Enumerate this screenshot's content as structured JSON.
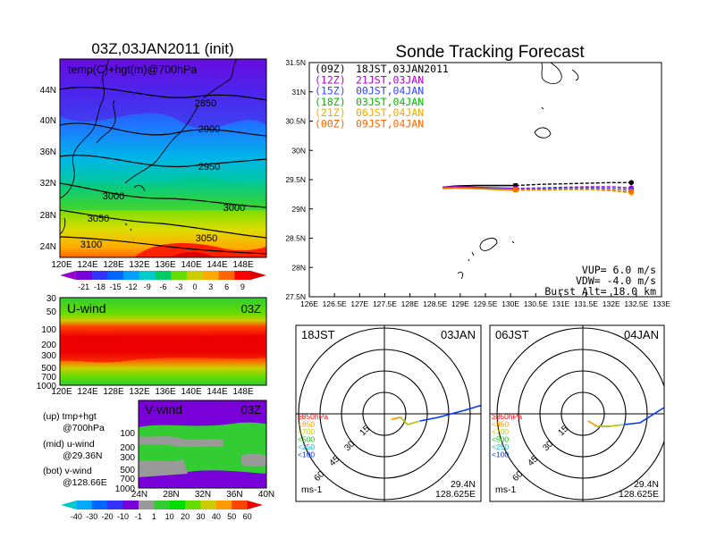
{
  "left": {
    "title": "03Z,03JAN2011 (init)",
    "map_label": "temp(C)+hgt(m)@700hPa",
    "lat_ticks": [
      "44N",
      "40N",
      "36N",
      "32N",
      "28N",
      "24N"
    ],
    "lon_ticks": [
      "120E",
      "124E",
      "128E",
      "132E",
      "136E",
      "140E",
      "144E",
      "148E"
    ],
    "contours": [
      "2850",
      "2900",
      "2950",
      "3000",
      "3000",
      "3050",
      "3050",
      "3100"
    ],
    "temp_scale": {
      "labels": [
        "-21",
        "-18",
        "-15",
        "-12",
        "-9",
        "-6",
        "-3",
        "0",
        "3",
        "6",
        "9"
      ],
      "colors": [
        "#9900cc",
        "#7a00d9",
        "#3333ff",
        "#0066ff",
        "#00a0ff",
        "#00cccc",
        "#00cc66",
        "#66dd00",
        "#cccc00",
        "#ffaa00",
        "#ff6600",
        "#ff0000",
        "#dd0000"
      ]
    },
    "u_panel": {
      "label": "U-wind",
      "time": "03Z",
      "p_ticks": [
        "30",
        "50",
        "100",
        "200",
        "300",
        "500",
        "700",
        "1000"
      ],
      "lon_ticks": [
        "120E",
        "124E",
        "128E",
        "132E",
        "136E",
        "140E",
        "144E",
        "148E"
      ]
    },
    "v_panel": {
      "label": "V-wind",
      "time": "03Z",
      "p_ticks": [
        "100",
        "200",
        "300",
        "500",
        "700",
        "1000"
      ],
      "lat_ticks": [
        "24N",
        "28N",
        "32N",
        "36N",
        "40N"
      ]
    },
    "notes": [
      {
        "a": "(up) tmp+hgt",
        "b": "@700hPa"
      },
      {
        "a": "(mid) u-wind",
        "b": "@29.36N"
      },
      {
        "a": "(bot) v-wind",
        "b": "@128.66E"
      }
    ],
    "wind_scale": {
      "labels": [
        "-40",
        "-30",
        "-20",
        "-10",
        "-1",
        "1",
        "10",
        "20",
        "30",
        "40",
        "50",
        "60"
      ],
      "colors": [
        "#00c8c8",
        "#00aaff",
        "#0066ff",
        "#3333ff",
        "#7a00d9",
        "#999999",
        "#33cc33",
        "#00dd00",
        "#66dd00",
        "#cccc00",
        "#ff9900",
        "#ff4400",
        "#ee0000"
      ]
    }
  },
  "right": {
    "title": "Sonde Tracking Forecast",
    "legend": [
      {
        "code": "(09Z)",
        "label": "18JST,03JAN2011",
        "color": "#000000"
      },
      {
        "code": "(12Z)",
        "label": "21JST,03JAN",
        "color": "#aa00cc"
      },
      {
        "code": "(15Z)",
        "label": "00JST,04JAN",
        "color": "#3344ff"
      },
      {
        "code": "(18Z)",
        "label": "03JST,04JAN",
        "color": "#00bb00"
      },
      {
        "code": "(21Z)",
        "label": "06JST,04JAN",
        "color": "#eeaa00"
      },
      {
        "code": "(00Z)",
        "label": "09JST,04JAN",
        "color": "#ff6600"
      }
    ],
    "params": {
      "vup": "VUP= 6.0 m/s",
      "vdw": "VDW= -4.0 m/s",
      "burst": "Burst Alt= 18.0 km"
    },
    "polar": [
      {
        "left": "18JST",
        "right": "03JAN",
        "lat": "29.4N",
        "lon": "128.625E",
        "unit": "ms-1"
      },
      {
        "left": "06JST",
        "right": "04JAN",
        "lat": "29.4N",
        "lon": "128.625E",
        "unit": "ms-1"
      }
    ],
    "polar_rings": [
      "15",
      "30",
      "45",
      "60"
    ],
    "polar_legend": [
      {
        "t": "≥850hPa",
        "c": "#ff0000"
      },
      {
        "t": "<850",
        "c": "#ff9900"
      },
      {
        "t": "<700",
        "c": "#cccc00"
      },
      {
        "t": "<500",
        "c": "#00cc00"
      },
      {
        "t": "<250",
        "c": "#00bbdd"
      },
      {
        "t": "<100",
        "c": "#0033ff"
      }
    ]
  },
  "chart_data": {
    "type": "line",
    "title": "Sonde Tracking Forecast",
    "xlim": [
      126,
      133
    ],
    "ylim": [
      27.5,
      31.5
    ],
    "x_ticks": [
      "126E",
      "126.5E",
      "127E",
      "127.5E",
      "128E",
      "128.5E",
      "129E",
      "129.5E",
      "130E",
      "130.5E",
      "131E",
      "131.5E",
      "132E",
      "132.5E",
      "133E"
    ],
    "y_ticks": [
      "27.5N",
      "28N",
      "28.5N",
      "29N",
      "29.5N",
      "30N",
      "30.5N",
      "31N",
      "31.5N"
    ],
    "series": [
      {
        "name": "18JST,03JAN2011",
        "color": "#000000",
        "x": [
          128.65,
          128.9,
          129.3,
          129.7,
          130.1,
          130.6,
          131.1,
          131.6,
          132.0,
          132.4
        ],
        "y": [
          29.37,
          29.39,
          29.4,
          29.4,
          29.4,
          29.42,
          29.43,
          29.44,
          29.45,
          29.45
        ]
      },
      {
        "name": "21JST,03JAN",
        "color": "#aa00cc",
        "x": [
          128.65,
          128.9,
          129.3,
          129.7,
          130.1,
          130.6,
          131.1,
          131.6,
          132.0,
          132.4
        ],
        "y": [
          29.37,
          29.38,
          29.37,
          29.36,
          29.35,
          29.36,
          29.37,
          29.38,
          29.38,
          29.36
        ]
      },
      {
        "name": "00JST,04JAN",
        "color": "#3344ff",
        "x": [
          128.65,
          128.9,
          129.3,
          129.7,
          130.1,
          130.6,
          131.1,
          131.6,
          132.0,
          132.4
        ],
        "y": [
          29.36,
          29.37,
          29.36,
          29.35,
          29.34,
          29.35,
          29.36,
          29.36,
          29.35,
          29.33
        ]
      },
      {
        "name": "03JST,04JAN",
        "color": "#00bb00",
        "x": [
          128.65,
          128.9,
          129.3,
          129.7,
          130.1,
          130.6,
          131.1,
          131.6,
          132.0,
          132.4
        ],
        "y": [
          29.35,
          29.36,
          29.35,
          29.34,
          29.33,
          29.33,
          29.33,
          29.33,
          29.32,
          29.28
        ]
      },
      {
        "name": "06JST,04JAN",
        "color": "#eeaa00",
        "x": [
          128.65,
          128.9,
          129.3,
          129.7,
          130.1,
          130.6,
          131.1,
          131.6,
          132.0,
          132.4
        ],
        "y": [
          29.35,
          29.36,
          29.35,
          29.33,
          29.32,
          29.32,
          29.33,
          29.33,
          29.31,
          29.27
        ]
      },
      {
        "name": "09JST,04JAN",
        "color": "#ff6600",
        "x": [
          128.65,
          128.9,
          129.3,
          129.7,
          130.1,
          130.6,
          131.1,
          131.6,
          132.0,
          132.4
        ],
        "y": [
          29.35,
          29.36,
          29.35,
          29.34,
          29.33,
          29.33,
          29.34,
          29.34,
          29.32,
          29.3
        ]
      }
    ]
  }
}
